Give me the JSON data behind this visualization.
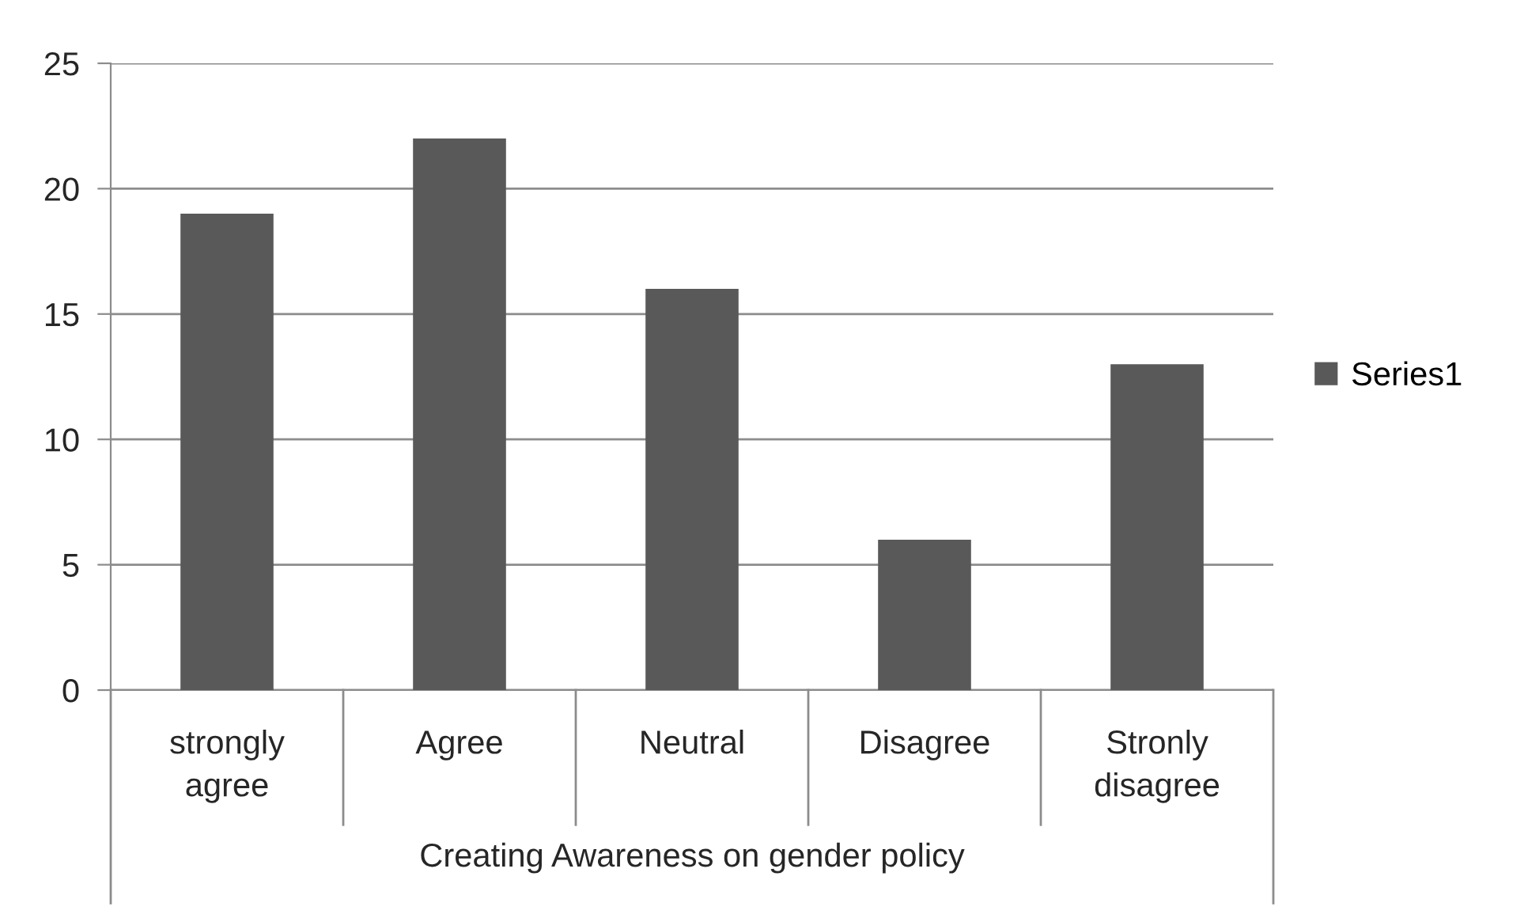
{
  "chart_data": {
    "type": "bar",
    "xlabel": "Creating Awareness on gender policy",
    "categories": [
      "strongly agree",
      "Agree",
      "Neutral",
      "Disagree",
      "Stronly disagree"
    ],
    "series": [
      {
        "name": "Series1",
        "color": "#595959",
        "values": [
          19,
          22,
          16,
          6,
          13
        ]
      }
    ],
    "ylim": [
      0,
      25
    ],
    "yticks": [
      0,
      5,
      10,
      15,
      20,
      25
    ],
    "grid": "y",
    "legend": "right"
  }
}
